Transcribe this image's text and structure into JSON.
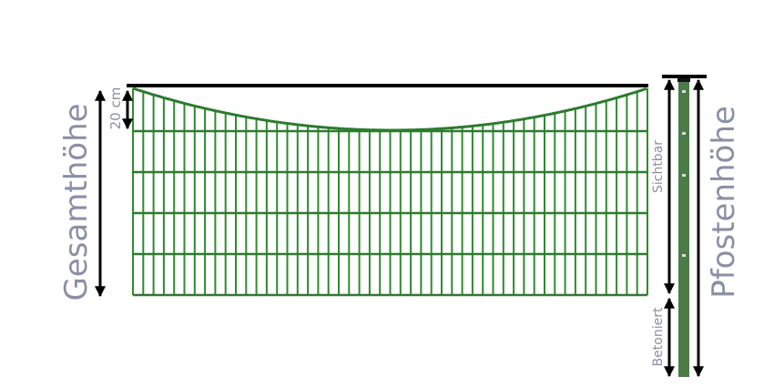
{
  "labels": {
    "total_height": "Gesamthöhe",
    "dip": "20 cm",
    "visible": "Sichtbar",
    "concreted": "Betoniert",
    "post_height": "Pfostenhöhe"
  },
  "colors": {
    "fence": "#2e8b2e",
    "post": "#4a7c47",
    "label": "#8c8fa3",
    "arrow": "#000000"
  }
}
